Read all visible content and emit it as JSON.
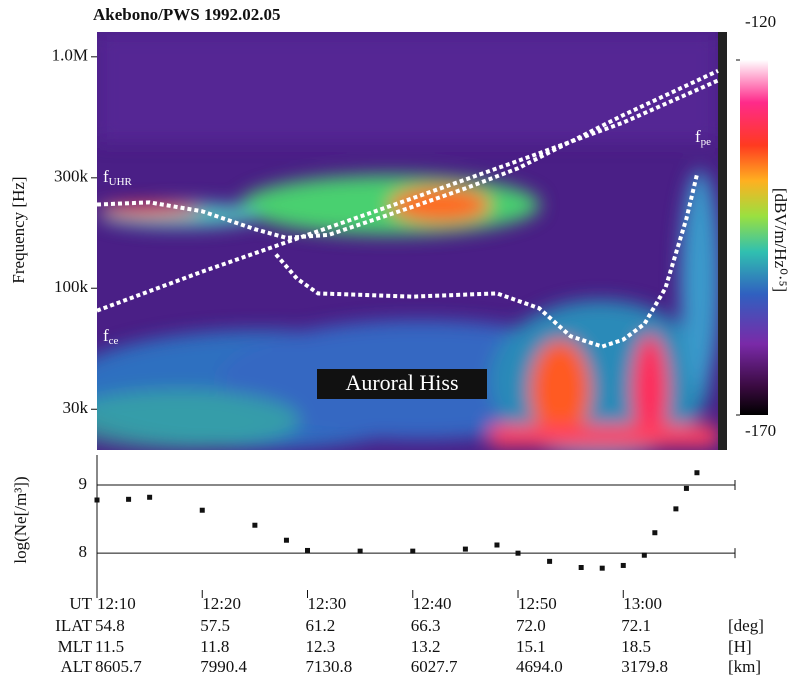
{
  "chart_data": [
    {
      "type": "spectrogram",
      "title": "Akebono/PWS 1992.02.05",
      "y_label": "Frequency [Hz]",
      "yscale": "log",
      "xlim": [
        "12:10",
        "13:09"
      ],
      "ylim": [
        20000,
        1280000
      ],
      "yticks": [
        {
          "value": 1000000,
          "label": "1.0M"
        },
        {
          "value": 300000,
          "label": "300k"
        },
        {
          "value": 100000,
          "label": "100k"
        },
        {
          "value": 30000,
          "label": "30k"
        }
      ],
      "colorbar": {
        "label": "[dBV/m/Hz⁰·⁵]",
        "clim": [
          -170,
          -120
        ],
        "ticks": [
          -120,
          -170
        ]
      },
      "series": [
        {
          "color": "#ffffff",
          "x": [
            "12:10",
            "12:20",
            "12:30",
            "12:40",
            "12:50",
            "13:00",
            "13:09"
          ],
          "values": [
            80000,
            118000,
            170000,
            245000,
            355000,
            520000,
            790000
          ]
        },
        {
          "color": "#ffffff",
          "x": [
            "12:10",
            "12:15",
            "12:20",
            "12:25",
            "12:28",
            "12:32",
            "12:40",
            "12:45",
            "12:50",
            "13:00",
            "13:09"
          ],
          "values": [
            230000,
            235000,
            215000,
            180000,
            165000,
            170000,
            225000,
            270000,
            330000,
            560000,
            870000
          ]
        },
        {
          "color": "#ffffff",
          "x": [
            "12:27",
            "12:29",
            "12:31",
            "12:40",
            "12:48",
            "12:52",
            "12:55",
            "12:58",
            "13:00",
            "13:02",
            "13:04",
            "13:06",
            "13:07"
          ],
          "values": [
            140000,
            110000,
            95000,
            92000,
            95000,
            82000,
            62000,
            56000,
            60000,
            70000,
            100000,
            200000,
            310000
          ]
        }
      ],
      "annotations": [
        {
          "text": "f",
          "sub": "UHR"
        },
        {
          "text": "f",
          "sub": "ce"
        },
        {
          "text": "f",
          "sub": "pe"
        },
        {
          "text": "Auroral Hiss"
        }
      ]
    },
    {
      "type": "scatter",
      "y_label": "log(Ne[/m³])",
      "xlim": [
        "12:10",
        "13:09"
      ],
      "ylim": [
        7.46,
        9.44
      ],
      "yticks": [
        9,
        8
      ],
      "grid": true,
      "color": "#111111",
      "x": [
        "12:10",
        "12:13",
        "12:15",
        "12:20",
        "12:25",
        "12:28",
        "12:30",
        "12:35",
        "12:40",
        "12:45",
        "12:48",
        "12:50",
        "12:53",
        "12:56",
        "12:58",
        "13:00",
        "13:02",
        "13:03",
        "13:05",
        "13:06",
        "13:07"
      ],
      "values": [
        8.78,
        8.79,
        8.82,
        8.63,
        8.41,
        8.19,
        8.04,
        8.03,
        8.03,
        8.06,
        8.12,
        8.0,
        7.88,
        7.79,
        7.78,
        7.82,
        7.97,
        8.3,
        8.65,
        8.95,
        9.18
      ]
    }
  ],
  "orbit": {
    "rows": [
      {
        "label": "UT",
        "values": [
          "12:10",
          "12:20",
          "12:30",
          "12:40",
          "12:50",
          "13:00"
        ]
      },
      {
        "label": "ILAT",
        "values": [
          "54.8",
          "57.5",
          "61.2",
          "66.3",
          "72.0",
          "72.1"
        ],
        "unit": "[deg]"
      },
      {
        "label": "MLT",
        "values": [
          "11.5",
          "11.8",
          "12.3",
          "13.2",
          "15.1",
          "18.5"
        ],
        "unit": "[H]"
      },
      {
        "label": "ALT",
        "values": [
          "8605.7",
          "7990.4",
          "7130.8",
          "6027.7",
          "4694.0",
          "3179.8"
        ],
        "unit": "[km]"
      }
    ]
  }
}
